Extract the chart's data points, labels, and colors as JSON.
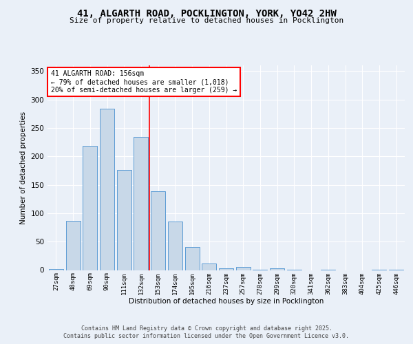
{
  "title_line1": "41, ALGARTH ROAD, POCKLINGTON, YORK, YO42 2HW",
  "title_line2": "Size of property relative to detached houses in Pocklington",
  "xlabel": "Distribution of detached houses by size in Pocklington",
  "ylabel": "Number of detached properties",
  "bar_labels": [
    "27sqm",
    "48sqm",
    "69sqm",
    "90sqm",
    "111sqm",
    "132sqm",
    "153sqm",
    "174sqm",
    "195sqm",
    "216sqm",
    "237sqm",
    "257sqm",
    "278sqm",
    "299sqm",
    "320sqm",
    "341sqm",
    "362sqm",
    "383sqm",
    "404sqm",
    "425sqm",
    "446sqm"
  ],
  "bar_values": [
    2,
    86,
    218,
    284,
    176,
    234,
    139,
    85,
    40,
    11,
    3,
    5,
    1,
    3,
    1,
    0,
    1,
    0,
    0,
    1,
    1
  ],
  "bar_color": "#c8d8e8",
  "bar_edge_color": "#5b9bd5",
  "annotation_title": "41 ALGARTH ROAD: 156sqm",
  "annotation_line2": "← 79% of detached houses are smaller (1,018)",
  "annotation_line3": "20% of semi-detached houses are larger (259) →",
  "ylim": [
    0,
    360
  ],
  "yticks": [
    0,
    50,
    100,
    150,
    200,
    250,
    300,
    350
  ],
  "background_color": "#eaf0f8",
  "plot_bg_color": "#eaf0f8",
  "footer_line1": "Contains HM Land Registry data © Crown copyright and database right 2025.",
  "footer_line2": "Contains public sector information licensed under the Open Government Licence v3.0."
}
